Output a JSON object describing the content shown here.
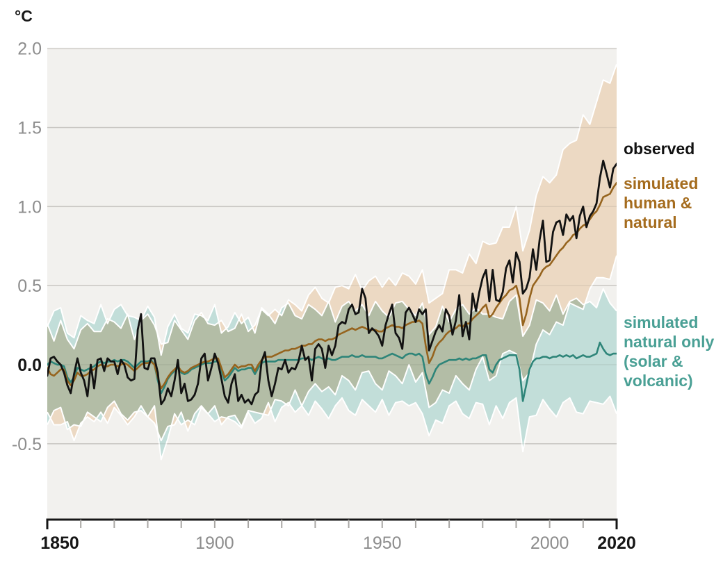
{
  "unit_label": "°C",
  "colors": {
    "page_bg": "#ffffff",
    "plot_bg": "#f2f1ee",
    "grid": "#d9d7d3",
    "grid_overlay": "rgba(90,88,82,0.12)",
    "axis": "#161616",
    "tick_minor": "#a9a7a4",
    "label_gray": "#8d8d8d",
    "label_strong": "#161616",
    "observed_line": "#121212",
    "human_natural_line": "#96641e",
    "natural_line": "#2e8579",
    "band_human_natural": "#ecd9c3",
    "band_natural": "#b7d3cc",
    "band_natural_multiply_fill": "#c2ded9",
    "band_outline": "#ffffff",
    "legend_observed": "#121212",
    "legend_human": "#a56c1e",
    "legend_natural": "#4aa095"
  },
  "legend": {
    "observed": "observed",
    "human_natural": "simulated\nhuman &\nnatural",
    "natural_only": "simulated\nnatural only\n(solar &\nvolcanic)"
  },
  "chart_data": {
    "type": "line",
    "title": "",
    "ylabel": "°C",
    "xlabel": "",
    "x_start": 1850,
    "x_end": 2020,
    "ylim": [
      -0.97,
      2.0
    ],
    "grid": true,
    "legend_position": "right",
    "y_ticks": [
      {
        "value": 2.0,
        "label": "2.0"
      },
      {
        "value": 1.5,
        "label": "1.5"
      },
      {
        "value": 1.0,
        "label": "1.0"
      },
      {
        "value": 0.5,
        "label": "0.5"
      },
      {
        "value": 0.0,
        "label": "0.0",
        "strong": true
      },
      {
        "value": -0.5,
        "label": "-0.5"
      }
    ],
    "x_ticks": [
      {
        "year": 1850,
        "label": "1850",
        "strong": true
      },
      {
        "year": 1860
      },
      {
        "year": 1870
      },
      {
        "year": 1880
      },
      {
        "year": 1890
      },
      {
        "year": 1900,
        "label": "1900"
      },
      {
        "year": 1910
      },
      {
        "year": 1920
      },
      {
        "year": 1930
      },
      {
        "year": 1940
      },
      {
        "year": 1950,
        "label": "1950"
      },
      {
        "year": 1960
      },
      {
        "year": 1970
      },
      {
        "year": 1980
      },
      {
        "year": 1990
      },
      {
        "year": 2000,
        "label": "2000"
      },
      {
        "year": 2010
      },
      {
        "year": 2020,
        "label": "2020",
        "strong": true
      }
    ],
    "series": [
      {
        "name": "observed",
        "values": [
          -0.07,
          0.04,
          0.05,
          0.02,
          0.0,
          -0.05,
          -0.13,
          -0.18,
          -0.06,
          0.04,
          -0.05,
          -0.1,
          -0.2,
          0.0,
          -0.15,
          0.03,
          0.04,
          -0.04,
          0.04,
          0.02,
          0.02,
          -0.06,
          0.03,
          0.0,
          -0.08,
          -0.1,
          -0.09,
          0.22,
          0.32,
          -0.02,
          -0.03,
          0.04,
          0.04,
          -0.05,
          -0.25,
          -0.22,
          -0.15,
          -0.2,
          -0.1,
          0.03,
          -0.18,
          -0.12,
          -0.23,
          -0.22,
          -0.19,
          -0.12,
          0.04,
          0.07,
          -0.1,
          -0.02,
          0.07,
          0.01,
          -0.09,
          -0.2,
          -0.24,
          -0.12,
          -0.06,
          -0.23,
          -0.19,
          -0.24,
          -0.22,
          -0.25,
          -0.19,
          -0.17,
          0.02,
          0.08,
          -0.1,
          -0.2,
          -0.12,
          -0.02,
          -0.03,
          0.03,
          -0.05,
          -0.02,
          -0.03,
          0.02,
          0.12,
          0.03,
          0.05,
          -0.1,
          0.1,
          0.13,
          0.1,
          -0.02,
          0.12,
          0.06,
          0.12,
          0.25,
          0.27,
          0.26,
          0.35,
          0.38,
          0.32,
          0.33,
          0.48,
          0.42,
          0.2,
          0.23,
          0.21,
          0.18,
          0.12,
          0.25,
          0.32,
          0.38,
          0.2,
          0.17,
          0.1,
          0.33,
          0.36,
          0.32,
          0.27,
          0.35,
          0.32,
          0.35,
          0.09,
          0.15,
          0.21,
          0.25,
          0.21,
          0.35,
          0.31,
          0.19,
          0.28,
          0.44,
          0.18,
          0.27,
          0.16,
          0.45,
          0.34,
          0.46,
          0.55,
          0.6,
          0.4,
          0.6,
          0.41,
          0.4,
          0.46,
          0.61,
          0.66,
          0.52,
          0.71,
          0.65,
          0.45,
          0.48,
          0.55,
          0.73,
          0.6,
          0.79,
          0.91,
          0.65,
          0.66,
          0.84,
          0.9,
          0.91,
          0.82,
          0.95,
          0.91,
          0.94,
          0.8,
          0.94,
          1.0,
          0.87,
          0.94,
          0.97,
          1.02,
          1.18,
          1.29,
          1.21,
          1.12,
          1.24,
          1.27
        ]
      },
      {
        "name": "simulated human & natural",
        "values": [
          -0.02,
          -0.06,
          -0.07,
          -0.05,
          -0.03,
          -0.03,
          -0.1,
          -0.13,
          -0.1,
          -0.05,
          -0.07,
          -0.07,
          -0.06,
          -0.04,
          -0.03,
          -0.01,
          0.0,
          -0.01,
          -0.01,
          0.0,
          0.0,
          -0.01,
          0.0,
          0.01,
          0.0,
          -0.02,
          -0.04,
          -0.02,
          0.0,
          0.01,
          0.01,
          0.02,
          0.0,
          -0.08,
          -0.15,
          -0.12,
          -0.08,
          -0.05,
          -0.03,
          -0.01,
          -0.04,
          -0.05,
          -0.04,
          -0.02,
          -0.01,
          0.0,
          0.01,
          0.02,
          0.02,
          0.03,
          0.04,
          0.04,
          -0.02,
          -0.08,
          -0.06,
          -0.03,
          0.0,
          -0.02,
          -0.01,
          -0.01,
          0.0,
          0.0,
          -0.04,
          0.0,
          0.03,
          0.05,
          0.05,
          0.05,
          0.06,
          0.07,
          0.08,
          0.09,
          0.09,
          0.1,
          0.1,
          0.11,
          0.12,
          0.12,
          0.13,
          0.13,
          0.15,
          0.16,
          0.16,
          0.15,
          0.16,
          0.16,
          0.17,
          0.19,
          0.2,
          0.21,
          0.22,
          0.23,
          0.22,
          0.23,
          0.24,
          0.23,
          0.22,
          0.22,
          0.22,
          0.21,
          0.21,
          0.23,
          0.24,
          0.25,
          0.24,
          0.24,
          0.23,
          0.25,
          0.26,
          0.27,
          0.27,
          0.28,
          0.26,
          0.12,
          0.01,
          0.05,
          0.11,
          0.14,
          0.16,
          0.19,
          0.21,
          0.22,
          0.23,
          0.25,
          0.24,
          0.26,
          0.26,
          0.29,
          0.31,
          0.33,
          0.36,
          0.38,
          0.3,
          0.32,
          0.36,
          0.39,
          0.42,
          0.44,
          0.47,
          0.48,
          0.5,
          0.42,
          0.25,
          0.32,
          0.42,
          0.5,
          0.53,
          0.56,
          0.6,
          0.62,
          0.63,
          0.66,
          0.69,
          0.72,
          0.74,
          0.77,
          0.79,
          0.82,
          0.83,
          0.86,
          0.88,
          0.89,
          0.92,
          0.95,
          0.97,
          1.01,
          1.06,
          1.07,
          1.08,
          1.12,
          1.15
        ]
      },
      {
        "name": "simulated natural only (solar & volcanic)",
        "values": [
          0.0,
          0.02,
          0.01,
          0.0,
          0.0,
          -0.01,
          -0.08,
          -0.11,
          -0.08,
          -0.02,
          -0.03,
          -0.04,
          -0.03,
          -0.02,
          -0.01,
          0.01,
          0.02,
          0.01,
          0.02,
          0.02,
          0.03,
          0.02,
          0.03,
          0.03,
          0.02,
          0.0,
          -0.02,
          0.0,
          0.02,
          0.02,
          0.02,
          0.03,
          0.0,
          -0.1,
          -0.18,
          -0.14,
          -0.09,
          -0.06,
          -0.04,
          -0.02,
          -0.05,
          -0.06,
          -0.05,
          -0.03,
          -0.02,
          -0.01,
          0.0,
          0.01,
          0.01,
          0.01,
          0.02,
          0.02,
          -0.04,
          -0.1,
          -0.08,
          -0.05,
          -0.02,
          -0.04,
          -0.03,
          -0.03,
          -0.02,
          -0.02,
          -0.06,
          -0.02,
          0.01,
          0.02,
          0.02,
          0.02,
          0.02,
          0.03,
          0.03,
          0.03,
          0.03,
          0.03,
          0.03,
          0.03,
          0.04,
          0.04,
          0.04,
          0.03,
          0.04,
          0.05,
          0.04,
          0.03,
          0.04,
          0.03,
          0.03,
          0.04,
          0.05,
          0.05,
          0.05,
          0.06,
          0.05,
          0.05,
          0.06,
          0.05,
          0.05,
          0.05,
          0.05,
          0.04,
          0.04,
          0.05,
          0.06,
          0.07,
          0.06,
          0.05,
          0.04,
          0.06,
          0.07,
          0.07,
          0.06,
          0.07,
          0.05,
          -0.06,
          -0.12,
          -0.08,
          -0.03,
          0.0,
          0.01,
          0.02,
          0.03,
          0.03,
          0.03,
          0.04,
          0.03,
          0.04,
          0.03,
          0.04,
          0.04,
          0.05,
          0.06,
          0.06,
          -0.03,
          -0.05,
          0.0,
          0.03,
          0.04,
          0.05,
          0.06,
          0.06,
          0.06,
          -0.03,
          -0.23,
          -0.13,
          -0.03,
          0.02,
          0.04,
          0.04,
          0.05,
          0.05,
          0.04,
          0.05,
          0.05,
          0.06,
          0.05,
          0.06,
          0.05,
          0.06,
          0.04,
          0.05,
          0.06,
          0.05,
          0.05,
          0.06,
          0.07,
          0.14,
          0.1,
          0.07,
          0.06,
          0.07,
          0.07
        ]
      }
    ],
    "bands": [
      {
        "name": "human & natural range",
        "year_step": 2,
        "upper": [
          0.26,
          0.15,
          0.28,
          0.16,
          0.1,
          0.22,
          0.26,
          0.21,
          0.21,
          0.29,
          0.27,
          0.23,
          0.32,
          0.16,
          0.28,
          0.32,
          0.25,
          0.13,
          0.14,
          0.28,
          0.22,
          0.16,
          0.28,
          0.33,
          0.26,
          0.25,
          0.28,
          0.21,
          0.23,
          0.32,
          0.21,
          0.25,
          0.35,
          0.31,
          0.35,
          0.31,
          0.41,
          0.38,
          0.34,
          0.44,
          0.49,
          0.42,
          0.39,
          0.49,
          0.5,
          0.48,
          0.57,
          0.47,
          0.53,
          0.56,
          0.49,
          0.55,
          0.5,
          0.58,
          0.56,
          0.51,
          0.6,
          0.39,
          0.42,
          0.45,
          0.6,
          0.6,
          0.58,
          0.7,
          0.64,
          0.78,
          0.76,
          0.77,
          0.87,
          0.87,
          1.0,
          0.72,
          0.85,
          1.07,
          1.19,
          1.15,
          1.2,
          1.36,
          1.4,
          1.42,
          1.58,
          1.52,
          1.66,
          1.8,
          1.78,
          1.9
        ],
        "lower": [
          -0.3,
          -0.38,
          -0.38,
          -0.36,
          -0.48,
          -0.37,
          -0.33,
          -0.36,
          -0.3,
          -0.37,
          -0.27,
          -0.32,
          -0.38,
          -0.33,
          -0.26,
          -0.33,
          -0.37,
          -0.48,
          -0.39,
          -0.38,
          -0.3,
          -0.42,
          -0.31,
          -0.26,
          -0.31,
          -0.26,
          -0.38,
          -0.33,
          -0.32,
          -0.39,
          -0.29,
          -0.3,
          -0.31,
          -0.32,
          -0.22,
          -0.23,
          -0.26,
          -0.16,
          -0.26,
          -0.17,
          -0.12,
          -0.17,
          -0.14,
          -0.19,
          -0.07,
          -0.1,
          -0.16,
          -0.05,
          -0.04,
          -0.12,
          -0.16,
          -0.04,
          -0.07,
          -0.12,
          0.0,
          -0.11,
          -0.05,
          -0.27,
          -0.24,
          -0.16,
          -0.18,
          -0.07,
          -0.12,
          -0.16,
          -0.03,
          0.05,
          -0.1,
          -0.07,
          0.07,
          0.09,
          0.07,
          -0.1,
          -0.05,
          0.13,
          0.22,
          0.19,
          0.27,
          0.25,
          0.39,
          0.37,
          0.35,
          0.48,
          0.55,
          0.55,
          0.54,
          0.69
        ]
      },
      {
        "name": "natural only range",
        "year_step": 2,
        "upper": [
          0.24,
          0.34,
          0.36,
          0.2,
          0.17,
          0.31,
          0.28,
          0.26,
          0.38,
          0.26,
          0.35,
          0.38,
          0.31,
          0.3,
          0.28,
          0.37,
          0.3,
          0.06,
          0.24,
          0.32,
          0.23,
          0.2,
          0.32,
          0.31,
          0.28,
          0.38,
          0.2,
          0.24,
          0.33,
          0.26,
          0.3,
          0.2,
          0.36,
          0.32,
          0.26,
          0.36,
          0.39,
          0.31,
          0.29,
          0.38,
          0.35,
          0.31,
          0.4,
          0.27,
          0.37,
          0.4,
          0.34,
          0.38,
          0.31,
          0.4,
          0.34,
          0.3,
          0.39,
          0.4,
          0.35,
          0.31,
          0.39,
          0.19,
          0.24,
          0.37,
          0.27,
          0.35,
          0.38,
          0.32,
          0.36,
          0.32,
          0.32,
          0.3,
          0.29,
          0.4,
          0.44,
          0.18,
          0.25,
          0.41,
          0.39,
          0.34,
          0.44,
          0.32,
          0.4,
          0.42,
          0.38,
          0.4,
          0.36,
          0.48,
          0.39,
          0.34
        ],
        "lower": [
          -0.38,
          -0.29,
          -0.27,
          -0.41,
          -0.38,
          -0.39,
          -0.3,
          -0.33,
          -0.36,
          -0.27,
          -0.23,
          -0.31,
          -0.35,
          -0.3,
          -0.29,
          -0.33,
          -0.26,
          -0.6,
          -0.47,
          -0.31,
          -0.38,
          -0.35,
          -0.38,
          -0.27,
          -0.31,
          -0.36,
          -0.33,
          -0.34,
          -0.36,
          -0.4,
          -0.3,
          -0.37,
          -0.34,
          -0.24,
          -0.36,
          -0.27,
          -0.24,
          -0.3,
          -0.26,
          -0.32,
          -0.23,
          -0.28,
          -0.34,
          -0.26,
          -0.21,
          -0.29,
          -0.32,
          -0.22,
          -0.26,
          -0.3,
          -0.22,
          -0.32,
          -0.24,
          -0.23,
          -0.26,
          -0.24,
          -0.31,
          -0.45,
          -0.35,
          -0.37,
          -0.26,
          -0.23,
          -0.31,
          -0.34,
          -0.24,
          -0.25,
          -0.38,
          -0.26,
          -0.34,
          -0.24,
          -0.21,
          -0.55,
          -0.33,
          -0.32,
          -0.22,
          -0.28,
          -0.33,
          -0.24,
          -0.21,
          -0.3,
          -0.31,
          -0.23,
          -0.24,
          -0.25,
          -0.2,
          -0.31
        ]
      }
    ]
  }
}
